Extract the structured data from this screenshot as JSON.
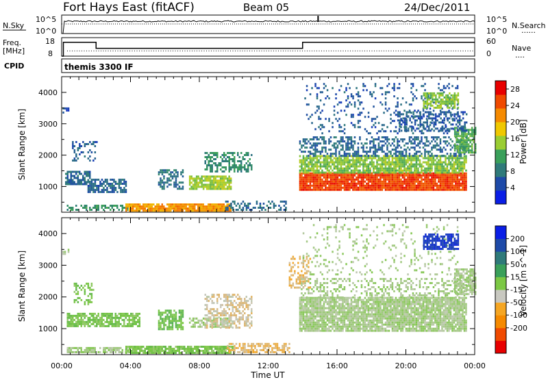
{
  "header": {
    "title": "Fort Hays East (fitACF)",
    "beam": "Beam 05",
    "date": "24/Dec/2011"
  },
  "strips": {
    "nsky_label": "N.Sky",
    "nsearch_label": "N.Search",
    "nsearch_dots": "......",
    "noise_ticks_left": [
      "10^5",
      "10^0"
    ],
    "noise_ticks_right": [
      "10^5",
      "10^0"
    ],
    "freq_label": "Freq.",
    "freq_unit": "[MHz]",
    "freq_ticks": [
      "18",
      "8"
    ],
    "nave_label": "Nave",
    "nave_dots": "....",
    "nave_ticks": [
      "60",
      "0"
    ],
    "cpid_label": "CPID",
    "cpid_value": "themis 3300 IF"
  },
  "chart_data": [
    {
      "type": "line",
      "name": "noise-strip",
      "x_hours": [
        0,
        0.1,
        24
      ],
      "nsky_log10": [
        0.0,
        3.3,
        3.3
      ],
      "nsearch_log10": [
        2.6,
        2.6,
        2.6
      ],
      "spike_x_hours": [
        14.9
      ],
      "spike_log10": 4.8,
      "ylim": [
        0,
        5
      ]
    },
    {
      "type": "line",
      "name": "frequency-strip",
      "freq_mhz": {
        "x_hours": [
          0,
          0.1,
          2.0,
          14.0,
          24
        ],
        "values": [
          8,
          15.5,
          12.2,
          15.5,
          15.5
        ]
      },
      "nave": {
        "x_hours": [
          0,
          24
        ],
        "values": [
          17,
          17
        ]
      },
      "freq_ylim": [
        8,
        18
      ],
      "nave_ylim": [
        0,
        60
      ]
    },
    {
      "type": "heatmap",
      "name": "power-panel",
      "ylabel": "Slant Range [km]",
      "xlim": [
        0,
        24
      ],
      "ylim": [
        180,
        4500
      ],
      "yticks": [
        1000,
        2000,
        3000,
        4000
      ],
      "colorbar": {
        "label": "Power [dB]",
        "ticks": [
          "28",
          "24",
          "20",
          "16",
          "12",
          "8",
          "4"
        ],
        "range": [
          0,
          30
        ],
        "colors": [
          "#0a1ee6",
          "#1e4aa8",
          "#2f7a7a",
          "#3aa05a",
          "#9acd32",
          "#f0c800",
          "#f58a00",
          "#f04a00",
          "#e80000"
        ]
      },
      "regions": [
        {
          "x0": 0.05,
          "x1": 0.35,
          "r0": 3350,
          "r1": 3520,
          "level": 4,
          "density": 0.6
        },
        {
          "x0": 0.2,
          "x1": 1.6,
          "r0": 1050,
          "r1": 1500,
          "level": 6,
          "density": 0.75
        },
        {
          "x0": 0.6,
          "x1": 2.0,
          "r0": 1800,
          "r1": 2450,
          "level": 5,
          "density": 0.35
        },
        {
          "x0": 1.5,
          "x1": 3.7,
          "r0": 820,
          "r1": 1250,
          "level": 6,
          "density": 0.7
        },
        {
          "x0": 0.3,
          "x1": 3.8,
          "r0": 250,
          "r1": 420,
          "level": 10,
          "density": 0.55
        },
        {
          "x0": 3.7,
          "x1": 9.8,
          "r0": 250,
          "r1": 460,
          "level": 22,
          "density": 0.9
        },
        {
          "x0": 5.6,
          "x1": 7.0,
          "r0": 900,
          "r1": 1550,
          "level": 7,
          "density": 0.55
        },
        {
          "x0": 7.4,
          "x1": 9.8,
          "r0": 900,
          "r1": 1350,
          "level": 15,
          "density": 0.85
        },
        {
          "x0": 8.3,
          "x1": 11.0,
          "r0": 1500,
          "r1": 2100,
          "level": 9,
          "density": 0.55
        },
        {
          "x0": 9.5,
          "x1": 13.0,
          "r0": 250,
          "r1": 550,
          "level": 6,
          "density": 0.45
        },
        {
          "x0": 13.8,
          "x1": 23.5,
          "r0": 900,
          "r1": 1450,
          "level": 27,
          "density": 0.95
        },
        {
          "x0": 13.8,
          "x1": 23.5,
          "r0": 1450,
          "r1": 2000,
          "level": 14,
          "density": 0.8
        },
        {
          "x0": 13.8,
          "x1": 23.5,
          "r0": 2000,
          "r1": 2600,
          "level": 6,
          "density": 0.45
        },
        {
          "x0": 14.0,
          "x1": 23.0,
          "r0": 2700,
          "r1": 4300,
          "level": 5,
          "density": 0.15
        },
        {
          "x0": 21.0,
          "x1": 23.0,
          "r0": 3500,
          "r1": 4000,
          "level": 14,
          "density": 0.7
        },
        {
          "x0": 22.8,
          "x1": 24.0,
          "r0": 2100,
          "r1": 2900,
          "level": 12,
          "density": 0.8
        },
        {
          "x0": 19.5,
          "x1": 23.5,
          "r0": 2800,
          "r1": 3400,
          "level": 5,
          "density": 0.45
        }
      ]
    },
    {
      "type": "heatmap",
      "name": "velocity-panel",
      "ylabel": "Slant Range [km]",
      "xlabel": "Time UT",
      "xlim": [
        0,
        24
      ],
      "ylim": [
        180,
        4500
      ],
      "xticks": [
        "00:00",
        "04:00",
        "08:00",
        "12:00",
        "16:00",
        "20:00",
        "00:00"
      ],
      "yticks": [
        1000,
        2000,
        3000,
        4000
      ],
      "colorbar": {
        "label": "Velocity [m s^-1]",
        "ticks": [
          "200",
          "100",
          "50",
          "15",
          "-15",
          "-50",
          "-100",
          "-200"
        ],
        "range": [
          -250,
          250
        ],
        "colors": [
          "#e80000",
          "#f04a00",
          "#f58a00",
          "#f5a623",
          "#c8c8c0",
          "#7cc844",
          "#3aa05a",
          "#2f7a7a",
          "#1e4aa8",
          "#0a1ee6"
        ]
      },
      "regions": [
        {
          "x0": 0.05,
          "x1": 0.35,
          "r0": 3350,
          "r1": 3520,
          "value": 0,
          "density": 0.6
        },
        {
          "x0": 0.3,
          "x1": 4.5,
          "r0": 1050,
          "r1": 1500,
          "value": 30,
          "density": 0.75
        },
        {
          "x0": 0.7,
          "x1": 1.8,
          "r0": 1800,
          "r1": 2450,
          "value": 30,
          "density": 0.35
        },
        {
          "x0": 0.3,
          "x1": 4.0,
          "r0": 230,
          "r1": 420,
          "value": 0,
          "density": 0.75
        },
        {
          "x0": 3.7,
          "x1": 10.0,
          "r0": 230,
          "r1": 460,
          "value": 25,
          "density": 0.85
        },
        {
          "x0": 5.6,
          "x1": 7.0,
          "r0": 1000,
          "r1": 1600,
          "value": 40,
          "density": 0.7
        },
        {
          "x0": 7.4,
          "x1": 9.8,
          "r0": 1050,
          "r1": 1350,
          "value": 0,
          "density": 0.6
        },
        {
          "x0": 8.3,
          "x1": 11.0,
          "r0": 1000,
          "r1": 2100,
          "value": -40,
          "density": 0.5
        },
        {
          "x0": 9.5,
          "x1": 13.2,
          "r0": 230,
          "r1": 550,
          "value": -60,
          "density": 0.55
        },
        {
          "x0": 13.8,
          "x1": 23.5,
          "r0": 900,
          "r1": 2000,
          "value": 0,
          "density": 0.88
        },
        {
          "x0": 13.8,
          "x1": 23.5,
          "r0": 2000,
          "r1": 2600,
          "value": 0,
          "density": 0.35
        },
        {
          "x0": 13.2,
          "x1": 14.4,
          "r0": 2300,
          "r1": 3300,
          "value": -60,
          "density": 0.35
        },
        {
          "x0": 14.0,
          "x1": 23.0,
          "r0": 2700,
          "r1": 4300,
          "value": 0,
          "density": 0.12
        },
        {
          "x0": 21.0,
          "x1": 23.0,
          "r0": 3500,
          "r1": 4000,
          "value": 220,
          "density": 0.75
        },
        {
          "x0": 22.8,
          "x1": 24.0,
          "r0": 2100,
          "r1": 2900,
          "value": 0,
          "density": 0.8
        }
      ]
    }
  ]
}
